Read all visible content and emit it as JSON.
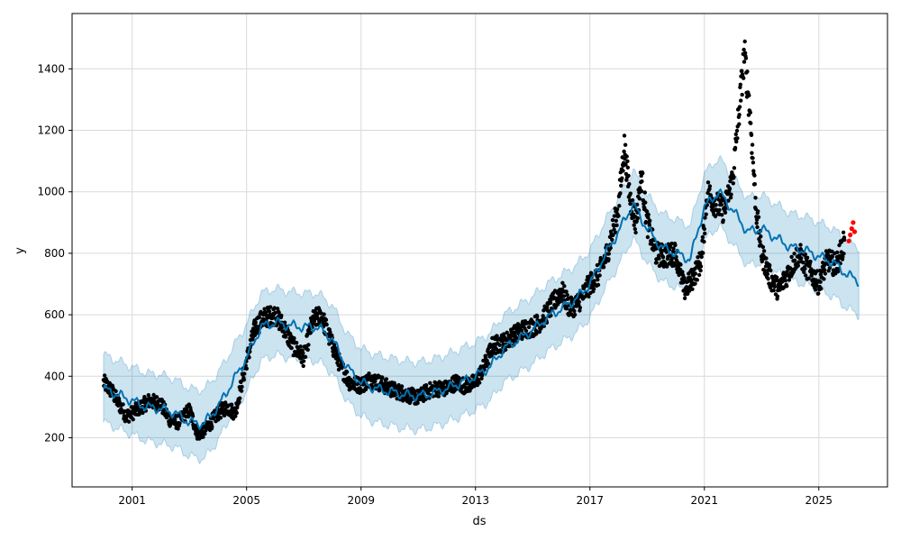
{
  "chart_data": {
    "type": "scatter",
    "title": "",
    "xlabel": "ds",
    "ylabel": "y",
    "xlim": [
      1998.9,
      2027.4
    ],
    "ylim": [
      40,
      1580
    ],
    "grid": true,
    "x_ticks": [
      2001,
      2005,
      2009,
      2013,
      2017,
      2021,
      2025
    ],
    "x_tick_labels": [
      "2001",
      "2005",
      "2009",
      "2013",
      "2017",
      "2021",
      "2025"
    ],
    "y_ticks": [
      200,
      400,
      600,
      800,
      1000,
      1200,
      1400
    ],
    "y_tick_labels": [
      "200",
      "400",
      "600",
      "800",
      "1000",
      "1200",
      "1400"
    ],
    "colors": {
      "observed": "#000000",
      "forecast_points": "#ff0000",
      "trend": "#0072b2",
      "interval": "#0072b2"
    },
    "forecast": {
      "x": [
        2000.0,
        2000.5,
        2001.0,
        2001.5,
        2002.0,
        2002.5,
        2003.0,
        2003.5,
        2004.0,
        2004.5,
        2005.0,
        2005.5,
        2006.0,
        2006.5,
        2007.0,
        2007.5,
        2008.0,
        2008.5,
        2009.0,
        2009.5,
        2010.0,
        2010.5,
        2011.0,
        2011.5,
        2012.0,
        2012.5,
        2013.0,
        2013.5,
        2014.0,
        2014.5,
        2015.0,
        2015.5,
        2016.0,
        2016.5,
        2017.0,
        2017.5,
        2018.0,
        2018.5,
        2019.0,
        2019.5,
        2020.0,
        2020.5,
        2021.0,
        2021.5,
        2022.0,
        2022.5,
        2023.0,
        2023.5,
        2024.0,
        2024.5,
        2025.0,
        2025.5,
        2026.0,
        2026.2,
        2026.4
      ],
      "yhat": [
        360,
        340,
        320,
        300,
        295,
        280,
        250,
        245,
        300,
        380,
        460,
        560,
        575,
        565,
        560,
        560,
        520,
        430,
        380,
        360,
        350,
        340,
        335,
        345,
        360,
        380,
        400,
        430,
        490,
        520,
        550,
        590,
        620,
        650,
        700,
        790,
        870,
        960,
        880,
        820,
        800,
        780,
        950,
        1000,
        940,
        870,
        880,
        850,
        820,
        810,
        790,
        770,
        730,
        720,
        710
      ],
      "yhat_lower": [
        250,
        230,
        210,
        190,
        180,
        170,
        140,
        130,
        190,
        280,
        350,
        450,
        470,
        460,
        450,
        450,
        410,
        320,
        270,
        250,
        240,
        230,
        225,
        235,
        250,
        270,
        290,
        320,
        380,
        410,
        440,
        480,
        510,
        540,
        590,
        680,
        760,
        850,
        770,
        710,
        690,
        670,
        840,
        890,
        830,
        760,
        770,
        740,
        710,
        700,
        680,
        660,
        620,
        610,
        600
      ],
      "yhat_upper": [
        470,
        450,
        430,
        410,
        405,
        390,
        360,
        355,
        410,
        490,
        570,
        670,
        685,
        675,
        670,
        670,
        630,
        540,
        490,
        470,
        460,
        450,
        445,
        455,
        470,
        490,
        510,
        540,
        600,
        630,
        660,
        700,
        730,
        760,
        810,
        900,
        980,
        1070,
        990,
        930,
        910,
        890,
        1060,
        1110,
        1050,
        980,
        990,
        960,
        930,
        920,
        900,
        880,
        840,
        830,
        820
      ]
    },
    "observed_anchors": {
      "x": [
        2000.0,
        2000.3,
        2000.6,
        2000.8,
        2001.0,
        2001.3,
        2001.6,
        2002.0,
        2002.3,
        2002.6,
        2003.0,
        2003.3,
        2003.6,
        2004.0,
        2004.3,
        2004.6,
        2005.0,
        2005.3,
        2005.6,
        2006.0,
        2006.3,
        2006.6,
        2007.0,
        2007.3,
        2007.6,
        2008.0,
        2008.3,
        2008.6,
        2009.0,
        2009.3,
        2009.6,
        2010.0,
        2010.3,
        2010.6,
        2011.0,
        2011.3,
        2011.6,
        2012.0,
        2012.3,
        2012.6,
        2013.0,
        2013.3,
        2013.6,
        2014.0,
        2014.3,
        2014.6,
        2015.0,
        2015.3,
        2015.6,
        2016.0,
        2016.3,
        2016.6,
        2017.0,
        2017.3,
        2017.6,
        2018.0,
        2018.2,
        2018.4,
        2018.6,
        2018.8,
        2019.0,
        2019.3,
        2019.6,
        2020.0,
        2020.3,
        2020.6,
        2020.9,
        2021.1,
        2021.4,
        2021.7,
        2022.0,
        2022.2,
        2022.4,
        2022.6,
        2022.8,
        2023.0,
        2023.3,
        2023.6,
        2024.0,
        2024.3,
        2024.6,
        2025.0,
        2025.3,
        2025.6,
        2025.9
      ],
      "y": [
        380,
        350,
        300,
        270,
        280,
        300,
        320,
        310,
        260,
        250,
        290,
        210,
        230,
        280,
        300,
        280,
        450,
        560,
        590,
        600,
        560,
        500,
        460,
        580,
        600,
        500,
        430,
        380,
        370,
        390,
        380,
        360,
        350,
        340,
        330,
        350,
        360,
        360,
        380,
        370,
        380,
        430,
        500,
        510,
        530,
        550,
        560,
        580,
        620,
        680,
        620,
        640,
        700,
        730,
        800,
        950,
        1150,
        980,
        900,
        1050,
        900,
        800,
        790,
        800,
        680,
        720,
        780,
        1000,
        960,
        940,
        1050,
        1250,
        1450,
        1250,
        950,
        800,
        720,
        680,
        750,
        800,
        750,
        700,
        780,
        760,
        840
      ]
    },
    "forecast_points": {
      "x": [
        2026.05,
        2026.1,
        2026.15,
        2026.2,
        2026.25
      ],
      "y": [
        840,
        860,
        880,
        900,
        870
      ]
    }
  }
}
